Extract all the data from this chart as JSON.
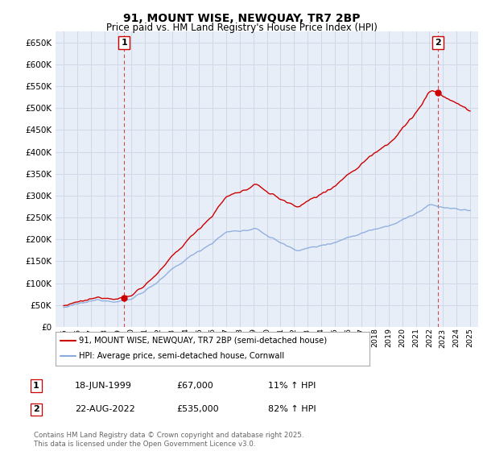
{
  "title": "91, MOUNT WISE, NEWQUAY, TR7 2BP",
  "subtitle": "Price paid vs. HM Land Registry's House Price Index (HPI)",
  "legend_property": "91, MOUNT WISE, NEWQUAY, TR7 2BP (semi-detached house)",
  "legend_hpi": "HPI: Average price, semi-detached house, Cornwall",
  "sale1_date": "18-JUN-1999",
  "sale1_price": 67000,
  "sale1_hpi": "11% ↑ HPI",
  "sale2_date": "22-AUG-2022",
  "sale2_price": 535000,
  "sale2_hpi": "82% ↑ HPI",
  "footnote": "Contains HM Land Registry data © Crown copyright and database right 2025.\nThis data is licensed under the Open Government Licence v3.0.",
  "ylim": [
    0,
    675000
  ],
  "yticks": [
    0,
    50000,
    100000,
    150000,
    200000,
    250000,
    300000,
    350000,
    400000,
    450000,
    500000,
    550000,
    600000,
    650000
  ],
  "property_color": "#cc0000",
  "hpi_color": "#88aadd",
  "dashed_color": "#cc0000",
  "background_color": "#ffffff",
  "grid_color": "#d0d8e8",
  "plot_bg_color": "#e8eef8"
}
